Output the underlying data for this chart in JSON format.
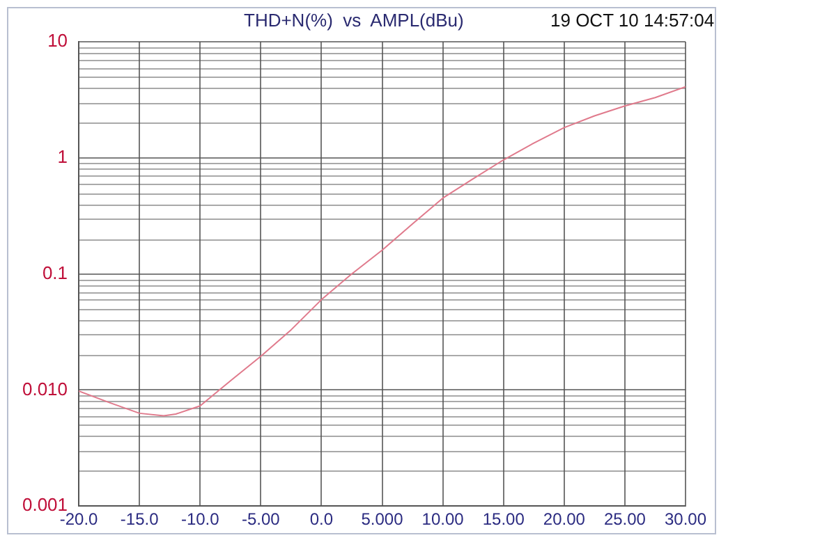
{
  "chart_data": {
    "type": "line",
    "title": "THD+N(%)  vs  AMPL(dBu)",
    "annotations": [
      "19 OCT 10 14:57:04"
    ],
    "x": [
      -20,
      -17.5,
      -15,
      -13,
      -12,
      -10,
      -7.5,
      -5,
      -2.5,
      0,
      2.5,
      5,
      7.5,
      10,
      12.5,
      15,
      17.5,
      20,
      22.5,
      25,
      27.5,
      30
    ],
    "series": [
      {
        "color": "#e07a8c",
        "values": [
          0.0098,
          0.0078,
          0.0063,
          0.006,
          0.0062,
          0.0073,
          0.012,
          0.0195,
          0.033,
          0.06,
          0.1,
          0.16,
          0.27,
          0.45,
          0.66,
          0.96,
          1.34,
          1.82,
          2.3,
          2.8,
          3.3,
          4.1
        ]
      }
    ],
    "log": "y",
    "xlim": [
      -20,
      30
    ],
    "ylim": [
      0.001,
      10
    ],
    "xticks": [
      {
        "value": -20,
        "label": "-20.0"
      },
      {
        "value": -15,
        "label": "-15.0"
      },
      {
        "value": -10,
        "label": "-10.0"
      },
      {
        "value": -5,
        "label": "-5.00"
      },
      {
        "value": 0,
        "label": "0.0"
      },
      {
        "value": 5,
        "label": "5.000"
      },
      {
        "value": 10,
        "label": "10.00"
      },
      {
        "value": 15,
        "label": "15.00"
      },
      {
        "value": 20,
        "label": "20.00"
      },
      {
        "value": 25,
        "label": "25.00"
      },
      {
        "value": 30,
        "label": "30.00"
      }
    ],
    "yticks": [
      0.001,
      {
        "value": 0.01,
        "label": "0.010"
      },
      0.1,
      1,
      10
    ],
    "grid": true,
    "legend": false,
    "marker": "none",
    "line_style": "solid"
  }
}
